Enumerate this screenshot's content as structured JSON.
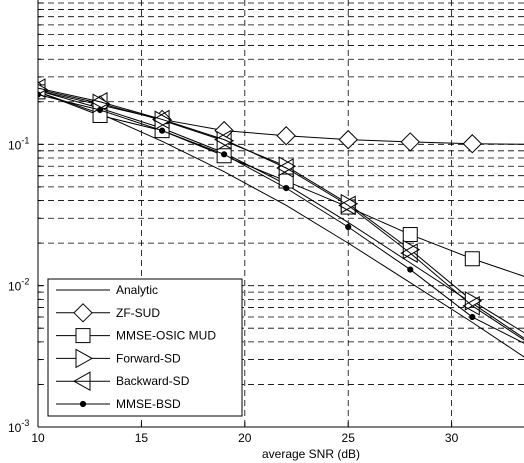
{
  "chart_data": {
    "type": "line",
    "title": "",
    "xlabel": "average SNR (dB)",
    "ylabel": "",
    "yscale": "log",
    "grid": true,
    "legend_position": "bottom-left",
    "xlim": [
      10,
      33.5
    ],
    "ylim": [
      0.001,
      1.05
    ],
    "x_ticks": [
      10,
      15,
      20,
      25,
      30
    ],
    "y_ticks": [
      {
        "value": 0.001,
        "base": "10",
        "exp": "-3"
      },
      {
        "value": 0.01,
        "base": "10",
        "exp": "-2"
      },
      {
        "value": 0.1,
        "base": "10",
        "exp": "-1"
      }
    ],
    "series": [
      {
        "name": "Analytic",
        "marker": "none",
        "x": [
          10,
          13,
          16,
          19,
          22,
          25,
          28,
          31,
          34
        ],
        "y": [
          0.235,
          0.165,
          0.105,
          0.064,
          0.037,
          0.02,
          0.0105,
          0.0055,
          0.0028
        ]
      },
      {
        "name": "Analytic",
        "marker": "none",
        "x": [
          10,
          13,
          16,
          19,
          22,
          25,
          28,
          31,
          34
        ],
        "y": [
          0.24,
          0.18,
          0.13,
          0.087,
          0.052,
          0.028,
          0.0145,
          0.0075,
          0.0038
        ]
      },
      {
        "name": "ZF-SUD",
        "marker": "diamond",
        "x": [
          10,
          13,
          16,
          19,
          22,
          25,
          28,
          31,
          34
        ],
        "y": [
          0.24,
          0.19,
          0.15,
          0.125,
          0.115,
          0.108,
          0.104,
          0.101,
          0.1
        ]
      },
      {
        "name": "MMSE-OSIC MUD",
        "marker": "square",
        "x": [
          10,
          13,
          16,
          19,
          22,
          25,
          28,
          31,
          34
        ],
        "y": [
          0.235,
          0.16,
          0.125,
          0.083,
          0.055,
          0.036,
          0.023,
          0.0155,
          0.011
        ]
      },
      {
        "name": "Forward-SD",
        "marker": "triangle-right",
        "x": [
          10,
          13,
          16,
          19,
          22,
          25,
          28,
          31,
          34
        ],
        "y": [
          0.245,
          0.195,
          0.148,
          0.106,
          0.07,
          0.038,
          0.018,
          0.0078,
          0.0042
        ]
      },
      {
        "name": "Backward-SD",
        "marker": "triangle-left",
        "x": [
          10,
          13,
          16,
          19,
          22,
          25,
          28,
          31,
          34
        ],
        "y": [
          0.25,
          0.2,
          0.15,
          0.108,
          0.068,
          0.037,
          0.017,
          0.0072,
          0.0037
        ]
      },
      {
        "name": "MMSE-BSD",
        "marker": "dot",
        "x": [
          10,
          13,
          16,
          19,
          22,
          25,
          28,
          31,
          34
        ],
        "y": [
          0.225,
          0.175,
          0.125,
          0.085,
          0.049,
          0.026,
          0.013,
          0.006,
          0.0036
        ]
      }
    ],
    "legend": [
      {
        "label": "Analytic",
        "marker": "none"
      },
      {
        "label": "ZF-SUD",
        "marker": "diamond"
      },
      {
        "label": "MMSE-OSIC MUD",
        "marker": "square"
      },
      {
        "label": "Forward-SD",
        "marker": "triangle-right"
      },
      {
        "label": "Backward-SD",
        "marker": "triangle-left"
      },
      {
        "label": "MMSE-BSD",
        "marker": "dot"
      }
    ]
  }
}
